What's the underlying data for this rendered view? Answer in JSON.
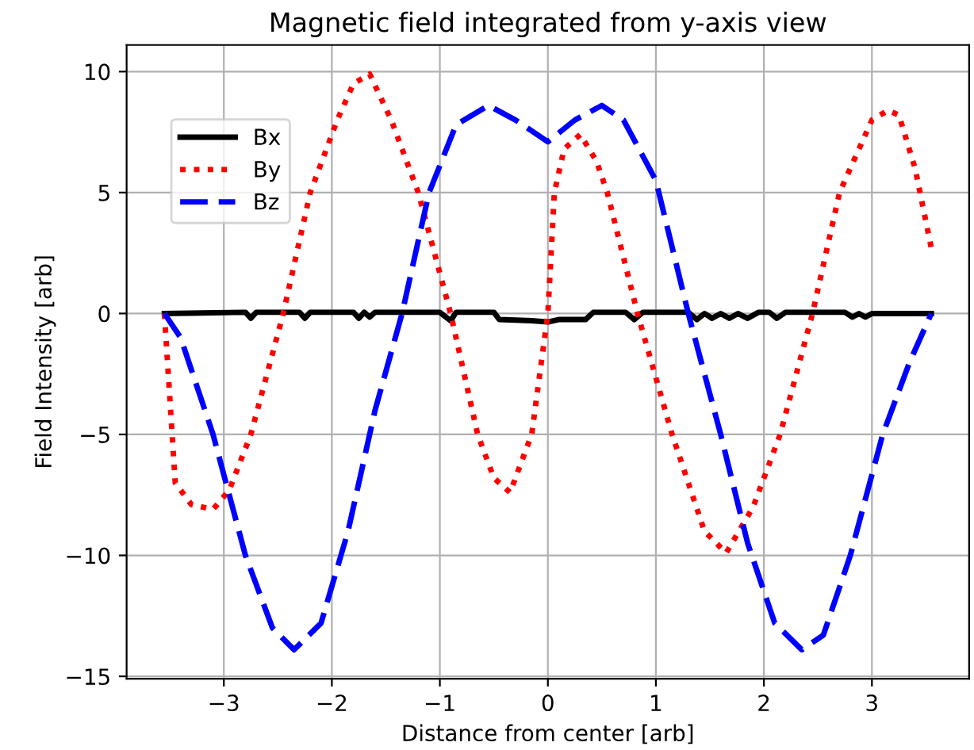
{
  "chart_data": {
    "type": "line",
    "title": "Magnetic field integrated from y-axis view",
    "xlabel": "Distance from center [arb]",
    "ylabel": "Field Intensity [arb]",
    "xlim": [
      -3.9,
      3.9
    ],
    "ylim": [
      -15.1,
      11.1
    ],
    "xticks": [
      {
        "value": -3,
        "label": "−3"
      },
      {
        "value": -2,
        "label": "−2"
      },
      {
        "value": -1,
        "label": "−1"
      },
      0,
      1,
      2,
      3
    ],
    "yticks": [
      {
        "value": -15,
        "label": "−15"
      },
      {
        "value": -10,
        "label": "−10"
      },
      {
        "value": -5,
        "label": "−5"
      },
      0,
      5,
      10
    ],
    "grid": true,
    "legend": "top left",
    "series": [
      {
        "name": "Bx",
        "color": "#000000",
        "line_style": "solid",
        "x": [
          -3.55,
          -2.8,
          -2.75,
          -2.7,
          -2.3,
          -2.25,
          -2.2,
          -1.8,
          -1.75,
          -1.7,
          -1.65,
          -1.6,
          -1.0,
          -0.9,
          -0.85,
          -0.5,
          -0.45,
          -0.15,
          0.0,
          0.1,
          0.35,
          0.42,
          0.72,
          0.8,
          0.88,
          1.3,
          1.38,
          1.45,
          1.52,
          1.6,
          1.68,
          1.76,
          1.85,
          1.95,
          2.05,
          2.12,
          2.2,
          2.75,
          2.82,
          2.88,
          2.94,
          3.0,
          3.55
        ],
        "values": [
          0,
          0.05,
          -0.2,
          0.05,
          0.05,
          -0.2,
          0.05,
          0.05,
          -0.2,
          0.05,
          -0.15,
          0.05,
          0.05,
          -0.3,
          0.05,
          0.05,
          -0.25,
          -0.3,
          -0.35,
          -0.25,
          -0.25,
          0.05,
          0.05,
          -0.25,
          0.05,
          0.05,
          -0.25,
          0.0,
          -0.2,
          0.0,
          -0.2,
          0.0,
          -0.2,
          0.05,
          0.05,
          -0.2,
          0.05,
          0.05,
          -0.15,
          0.0,
          -0.15,
          0.0,
          0
        ]
      },
      {
        "name": "By",
        "color": "#ff0000",
        "line_style": "dotted",
        "x": [
          -3.55,
          -3.45,
          -3.3,
          -3.1,
          -2.95,
          -2.75,
          -2.6,
          -2.45,
          -2.2,
          -1.95,
          -1.8,
          -1.65,
          -1.45,
          -1.2,
          -0.9,
          -0.65,
          -0.5,
          -0.35,
          -0.15,
          0.0,
          0.06,
          0.15,
          0.3,
          0.45,
          0.55,
          0.83,
          1.15,
          1.45,
          1.65,
          1.9,
          2.15,
          2.45,
          2.7,
          3.0,
          3.15,
          3.25,
          3.4,
          3.55
        ],
        "values": [
          0,
          -7,
          -7.9,
          -8.1,
          -7.3,
          -5,
          -2.5,
          0,
          5,
          8,
          9.5,
          9.9,
          8,
          5,
          0,
          -5,
          -6.8,
          -7.4,
          -5,
          0,
          5,
          6.8,
          7.4,
          6.3,
          5,
          0,
          -5,
          -9,
          -9.9,
          -8,
          -5,
          0,
          5,
          8,
          8.4,
          8.2,
          6,
          2.7
        ]
      },
      {
        "name": "Bz",
        "color": "#0000ff",
        "line_style": "dashed",
        "x": [
          -3.55,
          -3.4,
          -3.1,
          -2.8,
          -2.55,
          -2.35,
          -2.1,
          -1.85,
          -1.6,
          -1.35,
          -1.1,
          -0.85,
          -0.55,
          -0.3,
          0.0,
          0.25,
          0.5,
          0.7,
          1.0,
          1.3,
          1.6,
          1.85,
          2.1,
          2.35,
          2.55,
          2.8,
          3.1,
          3.35,
          3.55
        ],
        "values": [
          0,
          -1,
          -5,
          -10,
          -13,
          -13.9,
          -12.8,
          -9,
          -4,
          0,
          5,
          7.8,
          8.6,
          8,
          7.1,
          8,
          8.6,
          8,
          5.5,
          0,
          -5,
          -9.5,
          -12.8,
          -13.9,
          -13.3,
          -10,
          -5,
          -2,
          0
        ]
      }
    ]
  }
}
